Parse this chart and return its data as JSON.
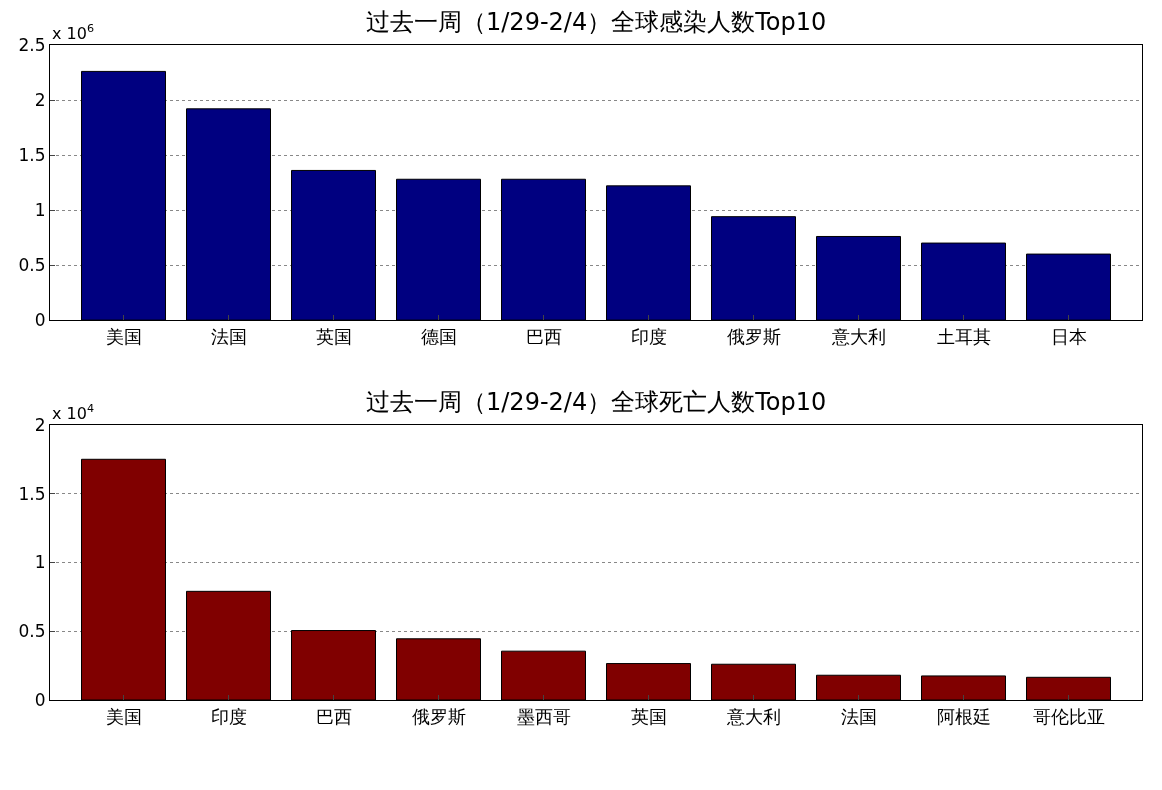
{
  "chart_data": [
    {
      "type": "bar",
      "title": "过去一周（1/29-2/4）全球感染人数Top10",
      "categories": [
        "美国",
        "法国",
        "英国",
        "德国",
        "巴西",
        "印度",
        "俄罗斯",
        "意大利",
        "土耳其",
        "日本"
      ],
      "values": [
        2.26,
        1.92,
        1.36,
        1.28,
        1.28,
        1.22,
        0.94,
        0.76,
        0.7,
        0.6
      ],
      "color": "#000080",
      "ylim": [
        0,
        2.5
      ],
      "yticks": [
        0,
        0.5,
        1,
        1.5,
        2,
        2.5
      ],
      "grid": "y",
      "annotations": [
        "x 10$^{6}$"
      ]
    },
    {
      "type": "bar",
      "title": "过去一周（1/29-2/4）全球死亡人数Top10",
      "categories": [
        "美国",
        "印度",
        "巴西",
        "俄罗斯",
        "墨西哥",
        "英国",
        "意大利",
        "法国",
        "阿根廷",
        "哥伦比亚"
      ],
      "values": [
        1.75,
        0.79,
        0.505,
        0.445,
        0.355,
        0.265,
        0.26,
        0.18,
        0.175,
        0.165
      ],
      "color": "#800000",
      "ylim": [
        0,
        2
      ],
      "yticks": [
        0,
        0.5,
        1,
        1.5,
        2
      ],
      "grid": "y",
      "annotations": [
        "x 10$^{4}$"
      ]
    }
  ]
}
